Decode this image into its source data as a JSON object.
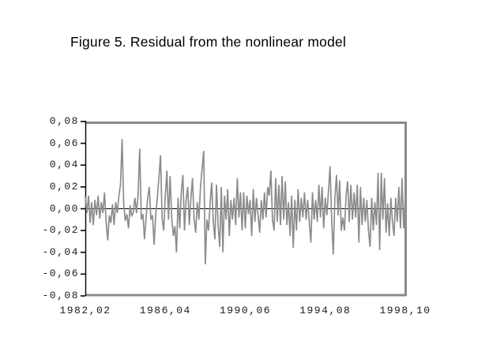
{
  "title": "Figure 5. Residual from the nonlinear model",
  "chart_data": {
    "type": "line",
    "title": "Figure 5. Residual from the nonlinear model",
    "series_name": "Residual",
    "xlabel": "",
    "ylabel": "",
    "x_start": "1982,02",
    "x_end": "1998,10",
    "frequency": "monthly",
    "n_points": 201,
    "ylim": [
      -0.08,
      0.08
    ],
    "y_tick_step": 0.02,
    "y_tick_labels": [
      "0,08",
      "0,06",
      "0,04",
      "0,02",
      "0,00",
      "-0,02",
      "-0,04",
      "-0,06",
      "-0,08"
    ],
    "x_tick_labels": [
      "1982,02",
      "1986,04",
      "1990,06",
      "1994,08",
      "1998,10"
    ],
    "x_tick_positions": [
      0,
      0.25,
      0.5,
      0.75,
      1
    ],
    "zero_line": true,
    "grid": false,
    "legend": "none",
    "colors": {
      "line": "#8c8c8c",
      "plot_border": "#8a8a8a",
      "axis": "#000000",
      "zero_line": "#000000",
      "text": "#1c1c1c",
      "background": "#ffffff"
    },
    "values": [
      0.011,
      -0.004,
      0.012,
      -0.013,
      0.006,
      -0.015,
      0.008,
      -0.006,
      0.012,
      -0.009,
      0.006,
      -0.004,
      0.015,
      -0.012,
      -0.029,
      -0.006,
      -0.013,
      0.004,
      -0.015,
      0.006,
      -0.004,
      0.012,
      0.022,
      0.064,
      0.004,
      -0.011,
      -0.005,
      -0.018,
      0.003,
      -0.007,
      -0.003,
      0.01,
      -0.004,
      0.013,
      0.055,
      -0.01,
      -0.005,
      -0.028,
      -0.008,
      0.01,
      0.02,
      -0.01,
      -0.006,
      -0.033,
      -0.006,
      0.01,
      0.028,
      0.049,
      -0.009,
      -0.02,
      0.012,
      0.035,
      -0.01,
      0.03,
      -0.008,
      -0.025,
      -0.016,
      -0.04,
      0.01,
      -0.018,
      0.015,
      0.031,
      -0.02,
      0.008,
      0.02,
      -0.015,
      0.01,
      0.028,
      -0.01,
      -0.022,
      0.006,
      -0.01,
      0.02,
      0.037,
      0.053,
      -0.051,
      -0.01,
      -0.02,
      0.005,
      0.024,
      -0.012,
      -0.028,
      0.022,
      -0.015,
      -0.035,
      0.02,
      -0.04,
      0.012,
      -0.01,
      0.018,
      -0.025,
      0.008,
      -0.01,
      0.01,
      -0.015,
      0.028,
      -0.008,
      0.015,
      -0.02,
      0.015,
      -0.018,
      0.012,
      -0.005,
      0.008,
      -0.025,
      0.018,
      -0.012,
      0.01,
      -0.006,
      -0.022,
      0.008,
      -0.01,
      0.015,
      -0.008,
      0.02,
      0.012,
      0.035,
      -0.01,
      -0.02,
      0.028,
      -0.012,
      0.022,
      -0.015,
      0.03,
      -0.01,
      0.025,
      -0.015,
      0.006,
      -0.025,
      0.012,
      -0.036,
      0.008,
      -0.02,
      0.018,
      -0.012,
      0.01,
      -0.008,
      0.015,
      -0.01,
      0.008,
      -0.012,
      -0.031,
      0.015,
      -0.01,
      0.008,
      -0.012,
      0.022,
      -0.008,
      0.02,
      -0.018,
      0.01,
      -0.006,
      0.016,
      0.039,
      -0.01,
      -0.042,
      0.01,
      0.031,
      -0.006,
      0.026,
      -0.02,
      -0.008,
      -0.02,
      0.012,
      0.025,
      -0.012,
      0.022,
      -0.01,
      0.015,
      -0.008,
      0.022,
      -0.031,
      0.02,
      -0.015,
      0.01,
      -0.012,
      0.008,
      -0.02,
      -0.035,
      0.01,
      -0.02,
      0.006,
      -0.015,
      0.033,
      -0.038,
      0.033,
      -0.01,
      0.028,
      -0.022,
      0.005,
      -0.025,
      0.01,
      -0.012,
      -0.025,
      0.01,
      -0.012,
      0.02,
      -0.018,
      0.028,
      -0.018,
      0.012
    ]
  }
}
